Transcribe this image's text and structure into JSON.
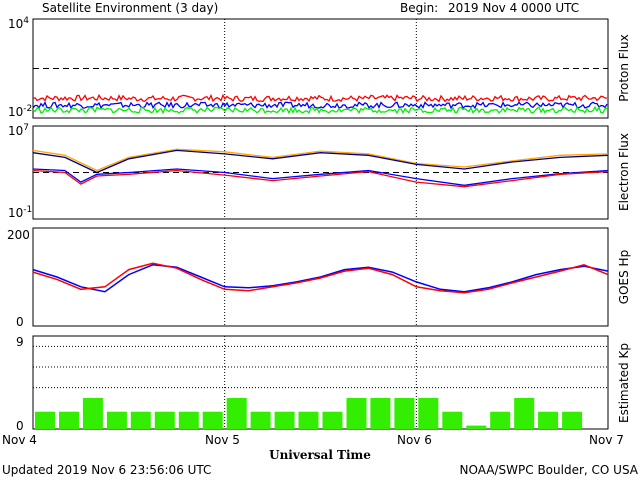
{
  "header": {
    "title": "Satellite Environment (3 day)",
    "begin_label": "Begin:",
    "begin_value": "2019 Nov 4 0000 UTC"
  },
  "footer": {
    "updated": "Updated 2019 Nov  6 23:56:06 UTC",
    "credit": "NOAA/SWPC Boulder, CO USA"
  },
  "colors": {
    "red": "#ff0000",
    "blue": "#0000ff",
    "green": "#00ee00",
    "orange": "#ffa500",
    "navy": "#000080",
    "kp_bar": "#33ee00"
  },
  "chart_data": [
    {
      "type": "line",
      "panel": "proton",
      "ylabel": "Proton Flux",
      "yscale": "log",
      "ylim": [
        0.01,
        10000
      ],
      "ytick_labels": [
        {
          "base": "10",
          "exp": "4"
        },
        {
          "base": "10",
          "exp": "-2"
        }
      ],
      "threshold": 10,
      "series": [
        {
          "color": "#ff0000",
          "values": [
            0.16,
            0.16,
            0.15,
            0.16,
            0.15,
            0.16,
            0.15,
            0.16,
            0.15,
            0.16,
            0.15,
            0.16,
            0.15
          ]
        },
        {
          "color": "#0000ff",
          "values": [
            0.06,
            0.06,
            0.06,
            0.06,
            0.06,
            0.06,
            0.06,
            0.06,
            0.06,
            0.06,
            0.06,
            0.06,
            0.06
          ]
        },
        {
          "color": "#00ee00",
          "values": [
            0.03,
            0.03,
            0.03,
            0.03,
            0.03,
            0.03,
            0.03,
            0.03,
            0.03,
            0.03,
            0.03,
            0.03,
            0.03
          ]
        }
      ],
      "x_hours": [
        0,
        6,
        12,
        18,
        24,
        30,
        36,
        42,
        48,
        54,
        60,
        66,
        72
      ]
    },
    {
      "type": "line",
      "panel": "electron",
      "ylabel": "Electron Flux",
      "yscale": "log",
      "ylim": [
        0.1,
        10000000
      ],
      "ytick_labels": [
        {
          "base": "10",
          "exp": "7"
        },
        {
          "base": "10",
          "exp": "-1"
        }
      ],
      "threshold": 1000,
      "series": [
        {
          "color": "#ffa500",
          "x_hours": [
            0,
            4,
            8,
            12,
            18,
            24,
            30,
            36,
            42,
            48,
            54,
            60,
            66,
            72
          ],
          "values": [
            80000,
            30000,
            1500,
            20000,
            100000,
            60000,
            20000,
            70000,
            40000,
            6000,
            3000,
            10000,
            30000,
            40000
          ]
        },
        {
          "color": "#000080",
          "x_hours": [
            0,
            4,
            8,
            12,
            18,
            24,
            30,
            36,
            42,
            48,
            54,
            60,
            66,
            72
          ],
          "values": [
            50000,
            20000,
            1000,
            15000,
            80000,
            40000,
            15000,
            50000,
            30000,
            5000,
            2000,
            8000,
            20000,
            30000
          ]
        },
        {
          "color": "#0000ff",
          "x_hours": [
            0,
            4,
            6,
            8,
            12,
            18,
            24,
            30,
            36,
            42,
            48,
            54,
            60,
            66,
            72
          ],
          "values": [
            2000,
            1500,
            150,
            700,
            1000,
            2000,
            1000,
            300,
            700,
            1500,
            300,
            80,
            300,
            800,
            1500
          ]
        },
        {
          "color": "#ff0000",
          "x_hours": [
            0,
            4,
            6,
            8,
            12,
            18,
            24,
            30,
            36,
            42,
            48,
            54,
            60,
            66,
            72
          ],
          "values": [
            1500,
            1000,
            100,
            500,
            700,
            1500,
            600,
            200,
            500,
            1200,
            150,
            60,
            200,
            700,
            1200
          ]
        }
      ]
    },
    {
      "type": "line",
      "panel": "goes_hp",
      "ylabel": "GOES Hp",
      "ylim": [
        0,
        200
      ],
      "ytick_labels": [
        "200",
        "0"
      ],
      "series": [
        {
          "color": "#0000ff",
          "x_hours": [
            0,
            3,
            6,
            9,
            12,
            15,
            18,
            21,
            24,
            27,
            30,
            33,
            36,
            39,
            42,
            45,
            48,
            51,
            54,
            57,
            60,
            63,
            66,
            69,
            72
          ],
          "values": [
            115,
            100,
            80,
            70,
            105,
            125,
            120,
            100,
            80,
            78,
            82,
            90,
            100,
            115,
            120,
            110,
            90,
            75,
            70,
            78,
            90,
            105,
            115,
            122,
            112
          ]
        },
        {
          "color": "#ff0000",
          "x_hours": [
            0,
            3,
            6,
            9,
            12,
            15,
            18,
            21,
            24,
            27,
            30,
            33,
            36,
            39,
            42,
            45,
            48,
            51,
            54,
            57,
            60,
            63,
            66,
            69,
            72
          ],
          "values": [
            110,
            95,
            75,
            80,
            115,
            128,
            118,
            95,
            75,
            72,
            80,
            88,
            98,
            112,
            118,
            105,
            80,
            72,
            68,
            75,
            88,
            100,
            112,
            125,
            105
          ]
        }
      ]
    },
    {
      "type": "bar",
      "panel": "kp",
      "ylabel": "Estimated Kp",
      "ylim": [
        0,
        9
      ],
      "ytick_labels": [
        "9",
        "0"
      ],
      "reference_levels": [
        4,
        6,
        8
      ],
      "x_hours": [
        0,
        3,
        6,
        9,
        12,
        15,
        18,
        21,
        24,
        27,
        30,
        33,
        36,
        39,
        42,
        45,
        48,
        51,
        54,
        57,
        60,
        63,
        66,
        69
      ],
      "values": [
        1.67,
        1.67,
        3,
        1.67,
        1.67,
        1.67,
        1.67,
        1.67,
        3,
        1.67,
        1.67,
        1.67,
        1.67,
        3,
        3,
        3,
        3,
        1.67,
        0.33,
        1.67,
        3,
        1.67,
        1.67,
        0
      ]
    }
  ],
  "xaxis": {
    "label": "Universal Time",
    "ticks": [
      "Nov 4",
      "Nov 5",
      "Nov 6",
      "Nov 7"
    ]
  }
}
